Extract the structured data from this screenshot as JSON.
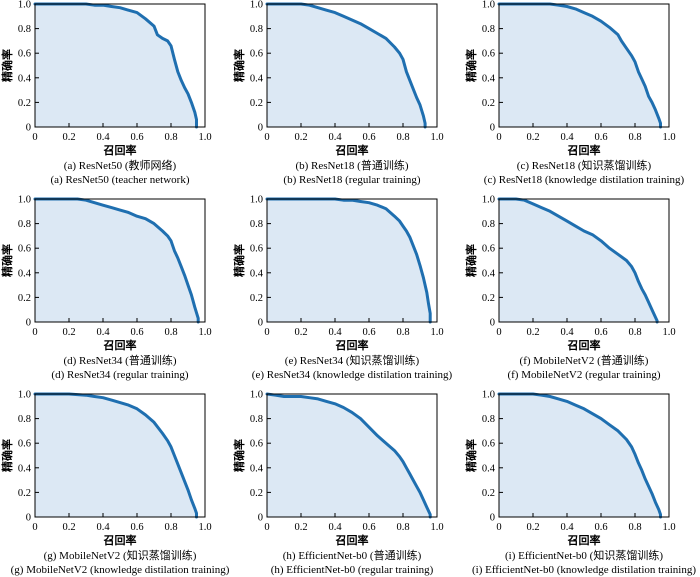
{
  "chart_data": [
    {
      "id": "a",
      "type": "area",
      "caption_cn": "(a) ResNet50 (教师网络)",
      "caption_en": "(a) ResNet50 (teacher network)",
      "xlabel": "召回率",
      "ylabel": "精确率",
      "xlim": [
        0,
        1
      ],
      "ylim": [
        0,
        1
      ],
      "xticks": [
        "0",
        "0.2",
        "0.4",
        "0.6",
        "0.8",
        "1.0"
      ],
      "yticks": [
        "0",
        "0.2",
        "0.4",
        "0.6",
        "0.8",
        "1.0"
      ],
      "x": [
        0,
        0.1,
        0.2,
        0.3,
        0.35,
        0.4,
        0.45,
        0.5,
        0.55,
        0.6,
        0.65,
        0.7,
        0.72,
        0.75,
        0.78,
        0.8,
        0.82,
        0.84,
        0.86,
        0.88,
        0.9,
        0.92,
        0.94,
        0.95,
        0.95
      ],
      "y": [
        1.0,
        1.0,
        1.0,
        1.0,
        0.99,
        0.99,
        0.98,
        0.97,
        0.95,
        0.93,
        0.88,
        0.82,
        0.75,
        0.72,
        0.7,
        0.66,
        0.55,
        0.45,
        0.38,
        0.32,
        0.27,
        0.2,
        0.12,
        0.06,
        0.0
      ]
    },
    {
      "id": "b",
      "type": "area",
      "caption_cn": "(b) ResNet18 (普通训练)",
      "caption_en": "(b) ResNet18 (regular training)",
      "xlabel": "召回率",
      "ylabel": "精确率",
      "xlim": [
        0,
        1
      ],
      "ylim": [
        0,
        1
      ],
      "xticks": [
        "0",
        "0.2",
        "0.4",
        "0.6",
        "0.8",
        "1.0"
      ],
      "yticks": [
        "0",
        "0.2",
        "0.4",
        "0.6",
        "0.8",
        "1.0"
      ],
      "x": [
        0,
        0.1,
        0.2,
        0.25,
        0.3,
        0.35,
        0.4,
        0.45,
        0.5,
        0.55,
        0.6,
        0.65,
        0.7,
        0.75,
        0.78,
        0.8,
        0.82,
        0.84,
        0.86,
        0.88,
        0.9,
        0.92,
        0.93,
        0.93
      ],
      "y": [
        1.0,
        1.0,
        1.0,
        0.99,
        0.97,
        0.95,
        0.93,
        0.9,
        0.87,
        0.84,
        0.8,
        0.76,
        0.72,
        0.65,
        0.6,
        0.55,
        0.45,
        0.38,
        0.31,
        0.24,
        0.18,
        0.09,
        0.03,
        0.0
      ]
    },
    {
      "id": "c",
      "type": "area",
      "caption_cn": "(c) ResNet18 (知识蒸馏训练)",
      "caption_en": "(c) ResNet18 (knowledge distilation training)",
      "xlabel": "召回率",
      "ylabel": "精确率",
      "xlim": [
        0,
        1
      ],
      "ylim": [
        0,
        1
      ],
      "xticks": [
        "0",
        "0.2",
        "0.4",
        "0.6",
        "0.8",
        "1.0"
      ],
      "yticks": [
        "0",
        "0.2",
        "0.4",
        "0.6",
        "0.8",
        "1.0"
      ],
      "x": [
        0,
        0.1,
        0.2,
        0.3,
        0.35,
        0.4,
        0.45,
        0.5,
        0.55,
        0.6,
        0.65,
        0.7,
        0.72,
        0.75,
        0.78,
        0.8,
        0.82,
        0.84,
        0.86,
        0.88,
        0.9,
        0.92,
        0.94,
        0.95,
        0.95
      ],
      "y": [
        1.0,
        1.0,
        1.0,
        1.0,
        0.99,
        0.98,
        0.96,
        0.93,
        0.9,
        0.86,
        0.81,
        0.75,
        0.7,
        0.64,
        0.58,
        0.53,
        0.45,
        0.39,
        0.33,
        0.25,
        0.2,
        0.14,
        0.07,
        0.03,
        0.0
      ]
    },
    {
      "id": "d",
      "type": "area",
      "caption_cn": "(d) ResNet34 (普通训练)",
      "caption_en": "(d) ResNet34 (regular training)",
      "xlabel": "召回率",
      "ylabel": "精确率",
      "xlim": [
        0,
        1
      ],
      "ylim": [
        0,
        1
      ],
      "xticks": [
        "0",
        "0.2",
        "0.4",
        "0.6",
        "0.8",
        "1.0"
      ],
      "yticks": [
        "0",
        "0.2",
        "0.4",
        "0.6",
        "0.8",
        "1.0"
      ],
      "x": [
        0,
        0.1,
        0.2,
        0.25,
        0.3,
        0.35,
        0.4,
        0.45,
        0.5,
        0.55,
        0.6,
        0.65,
        0.7,
        0.75,
        0.78,
        0.8,
        0.82,
        0.84,
        0.86,
        0.88,
        0.9,
        0.92,
        0.94,
        0.96,
        0.96
      ],
      "y": [
        1.0,
        1.0,
        1.0,
        1.0,
        0.99,
        0.97,
        0.95,
        0.93,
        0.91,
        0.89,
        0.86,
        0.84,
        0.8,
        0.74,
        0.7,
        0.66,
        0.58,
        0.52,
        0.45,
        0.38,
        0.3,
        0.22,
        0.12,
        0.03,
        0.0
      ]
    },
    {
      "id": "e",
      "type": "area",
      "caption_cn": "(e) ResNet34 (知识蒸馏训练)",
      "caption_en": "(e) ResNet34 (knowledge distilation training)",
      "xlabel": "召回率",
      "ylabel": "精确率",
      "xlim": [
        0,
        1
      ],
      "ylim": [
        0,
        1
      ],
      "xticks": [
        "0",
        "0.2",
        "0.4",
        "0.6",
        "0.8",
        "1.0"
      ],
      "yticks": [
        "0",
        "0.2",
        "0.4",
        "0.6",
        "0.8",
        "1.0"
      ],
      "x": [
        0,
        0.1,
        0.2,
        0.3,
        0.35,
        0.4,
        0.45,
        0.5,
        0.55,
        0.6,
        0.65,
        0.7,
        0.75,
        0.78,
        0.8,
        0.82,
        0.84,
        0.86,
        0.88,
        0.9,
        0.92,
        0.94,
        0.95,
        0.96,
        0.96
      ],
      "y": [
        1.0,
        1.0,
        1.0,
        1.0,
        1.0,
        1.0,
        0.99,
        0.99,
        0.98,
        0.97,
        0.95,
        0.92,
        0.86,
        0.82,
        0.78,
        0.74,
        0.69,
        0.62,
        0.55,
        0.46,
        0.36,
        0.24,
        0.15,
        0.07,
        0.0
      ]
    },
    {
      "id": "f",
      "type": "area",
      "caption_cn": "(f) MobileNetV2 (普通训练)",
      "caption_en": "(f) MobileNetV2 (regular training)",
      "xlabel": "召回率",
      "ylabel": "精确率",
      "xlim": [
        0,
        1
      ],
      "ylim": [
        0,
        1
      ],
      "xticks": [
        "0",
        "0.2",
        "0.4",
        "0.6",
        "0.8",
        "1.0"
      ],
      "yticks": [
        "0",
        "0.2",
        "0.4",
        "0.6",
        "0.8",
        "1.0"
      ],
      "x": [
        0,
        0.05,
        0.1,
        0.15,
        0.2,
        0.25,
        0.3,
        0.35,
        0.4,
        0.45,
        0.5,
        0.55,
        0.6,
        0.65,
        0.7,
        0.75,
        0.78,
        0.8,
        0.82,
        0.84,
        0.86,
        0.88,
        0.9,
        0.92,
        0.93,
        0.93
      ],
      "y": [
        1.0,
        1.0,
        1.0,
        0.99,
        0.96,
        0.93,
        0.9,
        0.86,
        0.82,
        0.78,
        0.74,
        0.71,
        0.66,
        0.6,
        0.55,
        0.5,
        0.45,
        0.4,
        0.33,
        0.27,
        0.22,
        0.16,
        0.1,
        0.04,
        0.01,
        0.0
      ]
    },
    {
      "id": "g",
      "type": "area",
      "caption_cn": "(g) MobileNetV2 (知识蒸馏训练)",
      "caption_en": "(g) MobileNetV2 (knowledge distilation training)",
      "xlabel": "召回率",
      "ylabel": "精确率",
      "xlim": [
        0,
        1
      ],
      "ylim": [
        0,
        1
      ],
      "xticks": [
        "0",
        "0.2",
        "0.4",
        "0.6",
        "0.8",
        "1.0"
      ],
      "yticks": [
        "0",
        "0.2",
        "0.4",
        "0.6",
        "0.8",
        "1.0"
      ],
      "x": [
        0,
        0.1,
        0.2,
        0.3,
        0.35,
        0.4,
        0.45,
        0.5,
        0.55,
        0.6,
        0.65,
        0.7,
        0.75,
        0.78,
        0.8,
        0.82,
        0.84,
        0.86,
        0.88,
        0.9,
        0.92,
        0.94,
        0.95,
        0.95
      ],
      "y": [
        1.0,
        1.0,
        1.0,
        0.99,
        0.98,
        0.97,
        0.95,
        0.93,
        0.91,
        0.88,
        0.83,
        0.77,
        0.68,
        0.62,
        0.57,
        0.5,
        0.43,
        0.36,
        0.29,
        0.22,
        0.14,
        0.07,
        0.03,
        0.0
      ]
    },
    {
      "id": "h",
      "type": "area",
      "caption_cn": "(h) EfficientNet-b0 (普通训练)",
      "caption_en": "(h) EfficientNet-b0 (regular training)",
      "xlabel": "召回率",
      "ylabel": "精确率",
      "xlim": [
        0,
        1
      ],
      "ylim": [
        0,
        1
      ],
      "xticks": [
        "0",
        "0.2",
        "0.4",
        "0.6",
        "0.8",
        "1.0"
      ],
      "yticks": [
        "0",
        "0.2",
        "0.4",
        "0.6",
        "0.8",
        "1.0"
      ],
      "x": [
        0,
        0.05,
        0.1,
        0.15,
        0.2,
        0.25,
        0.3,
        0.35,
        0.4,
        0.45,
        0.5,
        0.55,
        0.6,
        0.65,
        0.7,
        0.75,
        0.78,
        0.8,
        0.82,
        0.84,
        0.86,
        0.88,
        0.9,
        0.92,
        0.94,
        0.96,
        0.96
      ],
      "y": [
        1.0,
        0.99,
        0.98,
        0.98,
        0.98,
        0.97,
        0.96,
        0.94,
        0.92,
        0.89,
        0.85,
        0.8,
        0.73,
        0.66,
        0.6,
        0.54,
        0.49,
        0.45,
        0.4,
        0.35,
        0.3,
        0.25,
        0.2,
        0.14,
        0.08,
        0.02,
        0.0
      ]
    },
    {
      "id": "i",
      "type": "area",
      "caption_cn": "(i) EfficientNet-b0 (知识蒸馏训练)",
      "caption_en": "(i) EfficientNet-b0 (knowledge distilation training)",
      "xlabel": "召回率",
      "ylabel": "精确率",
      "xlim": [
        0,
        1
      ],
      "ylim": [
        0,
        1
      ],
      "xticks": [
        "0",
        "0.2",
        "0.4",
        "0.6",
        "0.8",
        "1.0"
      ],
      "yticks": [
        "0",
        "0.2",
        "0.4",
        "0.6",
        "0.8",
        "1.0"
      ],
      "x": [
        0,
        0.1,
        0.2,
        0.25,
        0.3,
        0.35,
        0.4,
        0.45,
        0.5,
        0.55,
        0.6,
        0.65,
        0.7,
        0.75,
        0.78,
        0.8,
        0.82,
        0.84,
        0.86,
        0.88,
        0.9,
        0.92,
        0.94,
        0.95,
        0.95
      ],
      "y": [
        1.0,
        1.0,
        1.0,
        0.99,
        0.98,
        0.96,
        0.94,
        0.91,
        0.88,
        0.84,
        0.8,
        0.75,
        0.7,
        0.63,
        0.57,
        0.51,
        0.44,
        0.38,
        0.31,
        0.25,
        0.19,
        0.12,
        0.06,
        0.02,
        0.0
      ]
    }
  ],
  "colors": {
    "curve": "#1f6fb0",
    "fill": "#dce8f4",
    "axis": "#000000"
  }
}
